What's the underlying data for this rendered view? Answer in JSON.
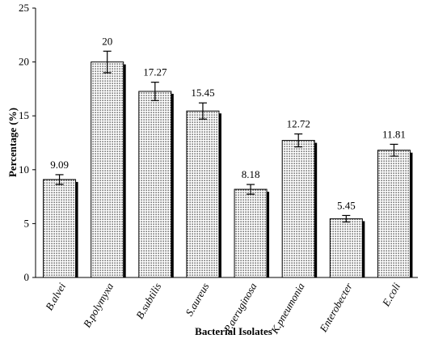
{
  "chart_data": {
    "type": "bar",
    "title": "",
    "xlabel": "Bacterial Isolates",
    "ylabel": "Percentage (%)",
    "ylim": [
      0,
      25
    ],
    "yticks": [
      0,
      5,
      10,
      15,
      20,
      25
    ],
    "grid": false,
    "legend": "none",
    "categories": [
      "B.alvei",
      "B.polymyxa",
      "B.subtilis",
      "S.aureus",
      "P.aeruginosa",
      "K.pneumonia",
      "Enterobecter",
      "E.coli"
    ],
    "values": [
      9.09,
      20,
      17.27,
      15.45,
      8.18,
      12.72,
      5.45,
      11.81
    ],
    "value_labels": [
      "9.09",
      "20",
      "17.27",
      "15.45",
      "8.18",
      "12.72",
      "5.45",
      "11.81"
    ],
    "errors": [
      0.45,
      1.0,
      0.85,
      0.75,
      0.45,
      0.6,
      0.3,
      0.55
    ],
    "colors": {
      "bar_fill": "#ffffff",
      "dots": "#000000",
      "shadow": "#000000",
      "axis": "#000000"
    }
  }
}
